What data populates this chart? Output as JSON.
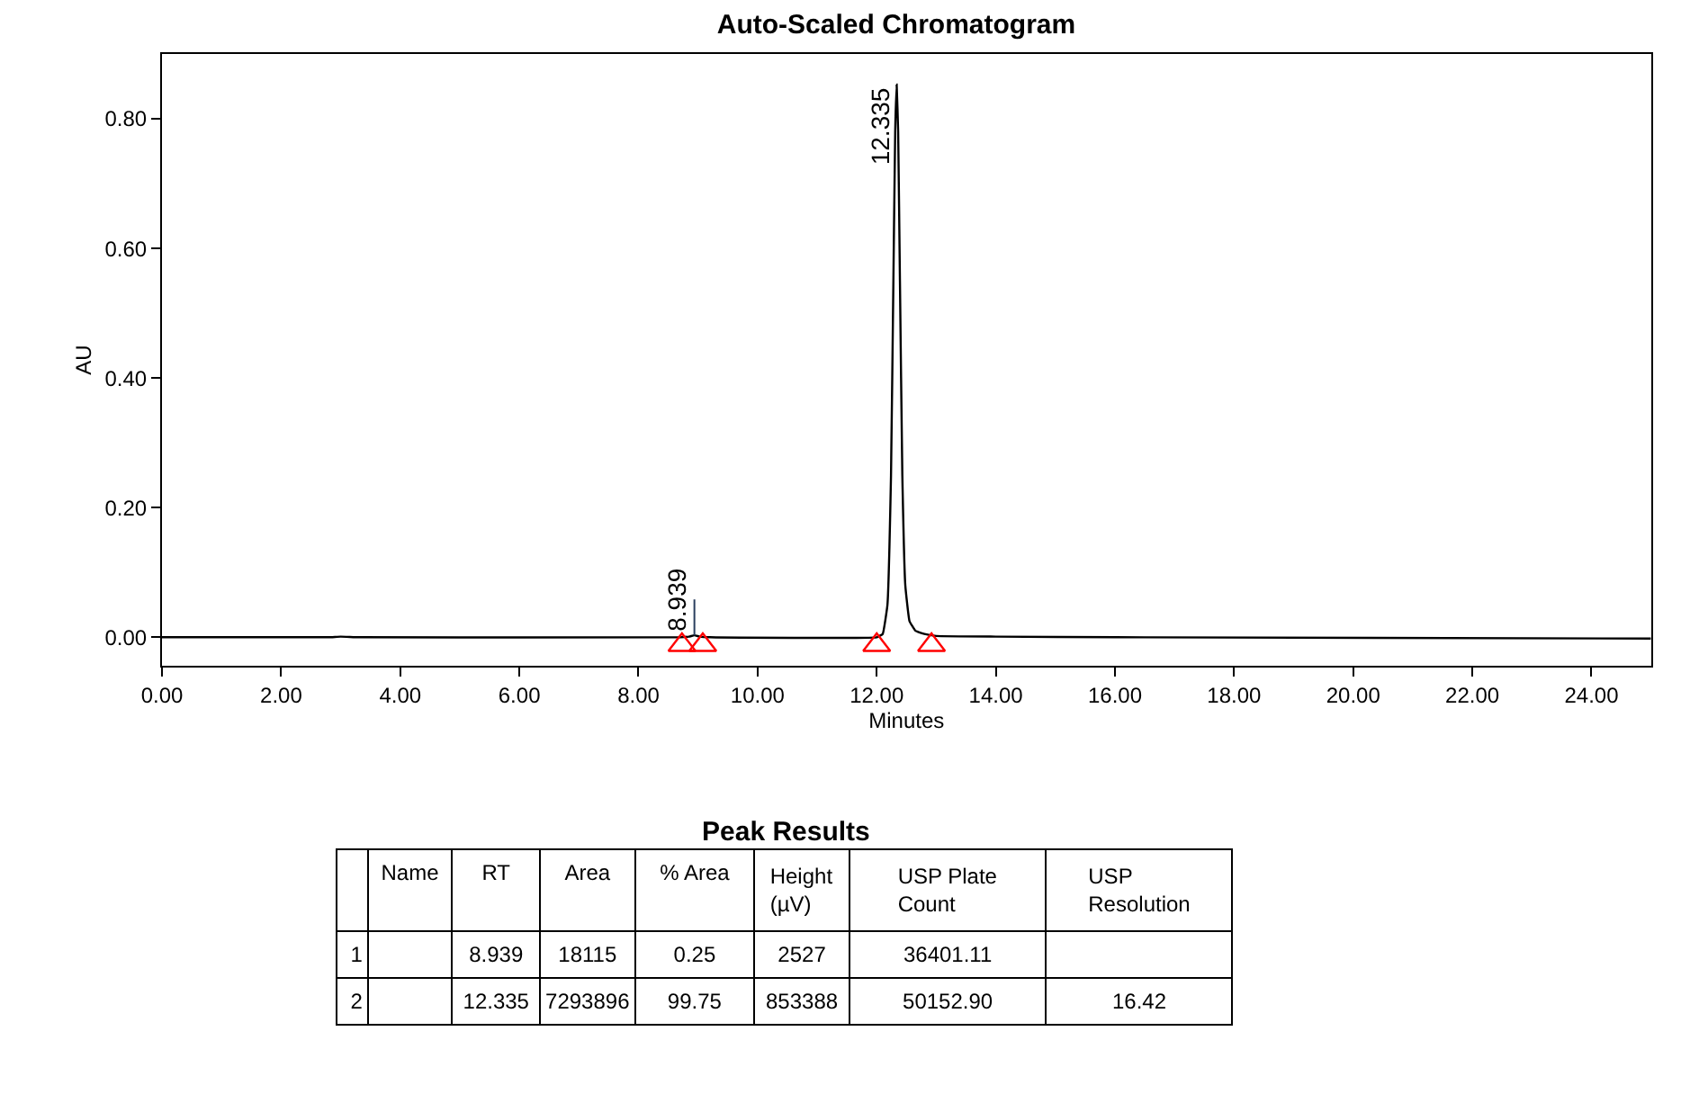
{
  "chart_data": [
    {
      "type": "line",
      "title": "Auto-Scaled Chromatogram",
      "xlabel": "Minutes",
      "ylabel": "AU",
      "xlim": [
        0,
        25
      ],
      "ylim": [
        -0.044,
        0.9
      ],
      "xticks": [
        {
          "value": 0,
          "label": "0.00"
        },
        {
          "value": 2,
          "label": "2.00"
        },
        {
          "value": 4,
          "label": "4.00"
        },
        {
          "value": 6,
          "label": "6.00"
        },
        {
          "value": 8,
          "label": "8.00"
        },
        {
          "value": 10,
          "label": "10.00"
        },
        {
          "value": 12,
          "label": "12.00"
        },
        {
          "value": 14,
          "label": "14.00"
        },
        {
          "value": 16,
          "label": "16.00"
        },
        {
          "value": 18,
          "label": "18.00"
        },
        {
          "value": 20,
          "label": "20.00"
        },
        {
          "value": 22,
          "label": "22.00"
        },
        {
          "value": 24,
          "label": "24.00"
        }
      ],
      "yticks": [
        {
          "value": 0,
          "label": "0.00"
        },
        {
          "value": 0.2,
          "label": "0.20"
        },
        {
          "value": 0.4,
          "label": "0.40"
        },
        {
          "value": 0.6,
          "label": "0.60"
        },
        {
          "value": 0.8,
          "label": "0.80"
        }
      ],
      "series": [
        {
          "type": "line",
          "color": "#000000",
          "x": [
            0,
            2.8,
            3.0,
            3.3,
            8.7,
            8.85,
            8.939,
            9.03,
            9.2,
            12.0,
            12.1,
            12.18,
            12.24,
            12.28,
            12.31,
            12.335,
            12.36,
            12.39,
            12.43,
            12.48,
            12.55,
            12.65,
            12.8,
            13.0,
            14.0,
            16.0,
            25.0
          ],
          "values": [
            0,
            0,
            0.001,
            0,
            0,
            0.001,
            0.003,
            0.001,
            0,
            0,
            0.005,
            0.05,
            0.25,
            0.55,
            0.78,
            0.853,
            0.78,
            0.55,
            0.25,
            0.08,
            0.025,
            0.01,
            0.005,
            0.002,
            0.001,
            0,
            -0.002
          ]
        },
        {
          "type": "scatter",
          "color": "#ff0000",
          "marker": "triangle",
          "x": [
            8.73,
            9.08,
            12.0,
            12.92
          ],
          "values": [
            -0.012,
            -0.012,
            -0.012,
            -0.012
          ]
        }
      ],
      "annotations": [
        {
          "text": "8.939",
          "x": 8.939,
          "y": 0.003
        },
        {
          "text": "12.335",
          "x": 12.335,
          "y": 0.853
        }
      ]
    },
    {
      "type": "other",
      "title": "Peak Results",
      "categories": [
        null,
        "Name",
        "RT",
        "Area",
        "% Area",
        "Height\n(µV)",
        "USP Plate Count",
        "USP Resolution"
      ],
      "cell_labels": [
        [
          "1",
          null,
          "8.939",
          "18115",
          "0.25",
          "2527",
          "36401.11",
          null
        ],
        [
          "2",
          null,
          "12.335",
          "7293896",
          "99.75",
          "853388",
          "50152.90",
          "16.42"
        ]
      ]
    }
  ]
}
